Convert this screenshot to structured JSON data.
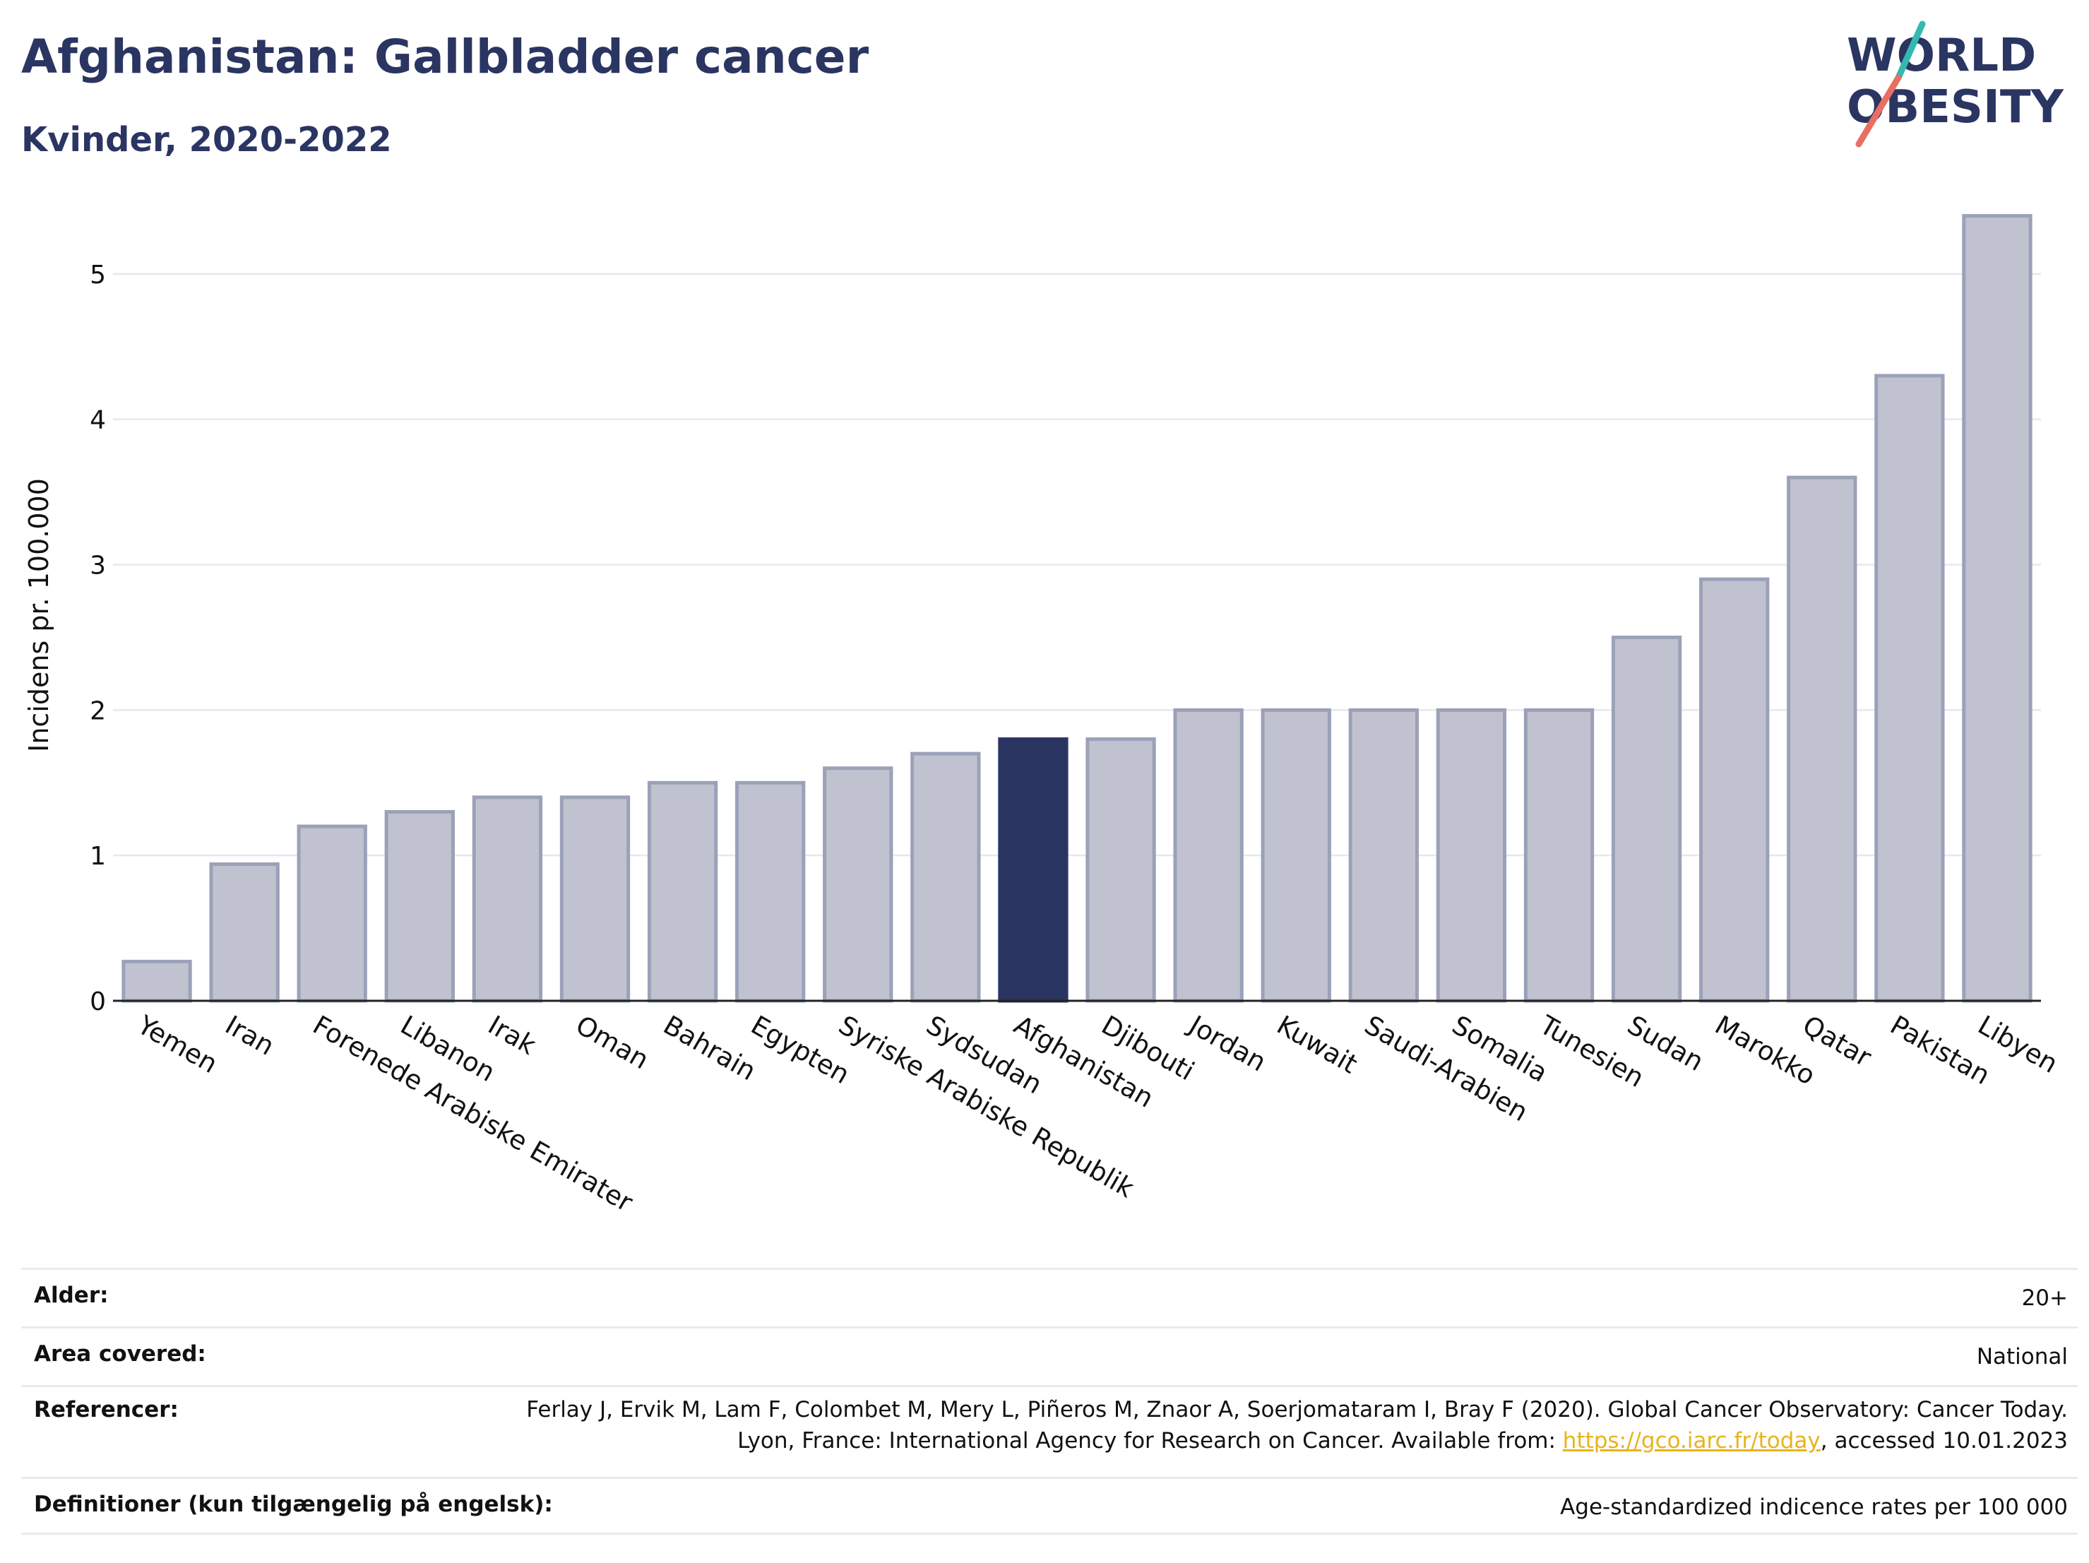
{
  "header": {
    "title": "Afghanistan: Gallbladder cancer",
    "subtitle": "Kvinder, 2020-2022"
  },
  "logo": {
    "line1": "WORLD",
    "line2": "OBESITY",
    "color": "#2a3562",
    "accent_teal": "#35b9ae",
    "accent_coral": "#e76f63"
  },
  "chart_data": {
    "type": "bar",
    "ylabel": "Incidens pr. 100.000",
    "ylim": [
      0,
      5.5
    ],
    "yticks": [
      0,
      1,
      2,
      3,
      4,
      5
    ],
    "grid": true,
    "highlight": "Afghanistan",
    "colors": {
      "default_fill": "#c0c3cf",
      "default_stroke": "#9ba1b8",
      "highlight_fill": "#2a3562"
    },
    "categories": [
      "Yemen",
      "Iran",
      "Forenede Arabiske Emirater",
      "Libanon",
      "Irak",
      "Oman",
      "Bahrain",
      "Egypten",
      "Syriske Arabiske Republik",
      "Sydsudan",
      "Afghanistan",
      "Djibouti",
      "Jordan",
      "Kuwait",
      "Saudi-Arabien",
      "Somalia",
      "Tunesien",
      "Sudan",
      "Marokko",
      "Qatar",
      "Pakistan",
      "Libyen"
    ],
    "values": [
      0.27,
      0.94,
      1.2,
      1.3,
      1.4,
      1.4,
      1.5,
      1.5,
      1.6,
      1.7,
      1.8,
      1.8,
      2.0,
      2.0,
      2.0,
      2.0,
      2.0,
      2.5,
      2.9,
      3.6,
      4.3,
      5.4
    ]
  },
  "meta": {
    "age_label": "Alder:",
    "age_value": "20+",
    "area_label": "Area covered:",
    "area_value": "National",
    "ref_label": "Referencer:",
    "ref_text_1": "Ferlay J, Ervik M, Lam F, Colombet M, Mery L, Piñeros M, Znaor A, Soerjomataram I, Bray F (2020). Global Cancer Observatory: Cancer Today. Lyon, France: International Agency for Research on Cancer. Available from: ",
    "ref_link": "https://gco.iarc.fr/today",
    "ref_text_2": ", accessed 10.01.2023",
    "def_label": "Definitioner (kun tilgængelig på engelsk):",
    "def_value": "Age-standardized indicence rates per 100 000"
  }
}
